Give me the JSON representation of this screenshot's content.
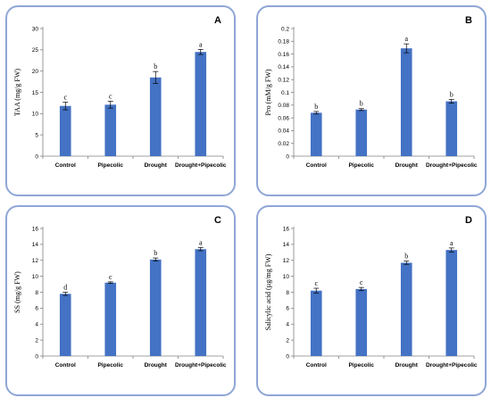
{
  "colors": {
    "bar": "#4472c4",
    "frame": "#8fa6d6",
    "axis": "#808080"
  },
  "chart_data": [
    {
      "type": "bar",
      "panel": "A",
      "ylabel": "TAA (mg/g FW)",
      "ylim": [
        0,
        30
      ],
      "yticks": [
        0,
        5,
        10,
        15,
        20,
        25,
        30
      ],
      "ytick_labels": [
        "0",
        "5",
        "10",
        "15",
        "20",
        "25",
        "30"
      ],
      "categories": [
        "Control",
        "Pipecolic",
        "Drought",
        "Drought+Pipecolic"
      ],
      "values": [
        11.8,
        12.1,
        18.5,
        24.5
      ],
      "errors": [
        0.9,
        0.8,
        1.4,
        0.6
      ],
      "letters": [
        "c",
        "c",
        "b",
        "a"
      ]
    },
    {
      "type": "bar",
      "panel": "B",
      "ylabel": "Pro (mM/g FW)",
      "ylim": [
        0,
        0.2
      ],
      "yticks": [
        0,
        0.02,
        0.04,
        0.06,
        0.08,
        0.1,
        0.12,
        0.14,
        0.16,
        0.18,
        0.2
      ],
      "ytick_labels": [
        "0",
        "0.02",
        "0.04",
        "0.06",
        "0.08",
        "0.1",
        "0.12",
        "0.14",
        "0.16",
        "0.18",
        "0.2"
      ],
      "categories": [
        "Control",
        "Pipecolic",
        "Drought",
        "Drought+Pipecolic"
      ],
      "values": [
        0.068,
        0.073,
        0.169,
        0.086
      ],
      "errors": [
        0.002,
        0.0015,
        0.007,
        0.003
      ],
      "letters": [
        "b",
        "b",
        "a",
        "b"
      ]
    },
    {
      "type": "bar",
      "panel": "C",
      "ylabel": "SS (mg/g FW)",
      "ylim": [
        0,
        16
      ],
      "yticks": [
        0,
        2,
        4,
        6,
        8,
        10,
        12,
        14,
        16
      ],
      "ytick_labels": [
        "0",
        "2",
        "4",
        "6",
        "8",
        "10",
        "12",
        "14",
        "16"
      ],
      "categories": [
        "Control",
        "Pipecolic",
        "Drought",
        "Drought+Pipecolic"
      ],
      "values": [
        7.8,
        9.2,
        12.1,
        13.4
      ],
      "errors": [
        0.2,
        0.1,
        0.2,
        0.2
      ],
      "letters": [
        "d",
        "c",
        "b",
        "a"
      ]
    },
    {
      "type": "bar",
      "panel": "D",
      "ylabel": "Salicylic acid (µg/mg FW)",
      "ylim": [
        0,
        16
      ],
      "yticks": [
        0,
        2,
        4,
        6,
        8,
        10,
        12,
        14,
        16
      ],
      "ytick_labels": [
        "0",
        "2",
        "4",
        "6",
        "8",
        "10",
        "12",
        "14",
        "16"
      ],
      "categories": [
        "Control",
        "Pipecolic",
        "Drought",
        "Drought+Pipecolic"
      ],
      "values": [
        8.2,
        8.4,
        11.7,
        13.3
      ],
      "errors": [
        0.3,
        0.2,
        0.2,
        0.25
      ],
      "letters": [
        "c",
        "c",
        "b",
        "a"
      ]
    }
  ]
}
